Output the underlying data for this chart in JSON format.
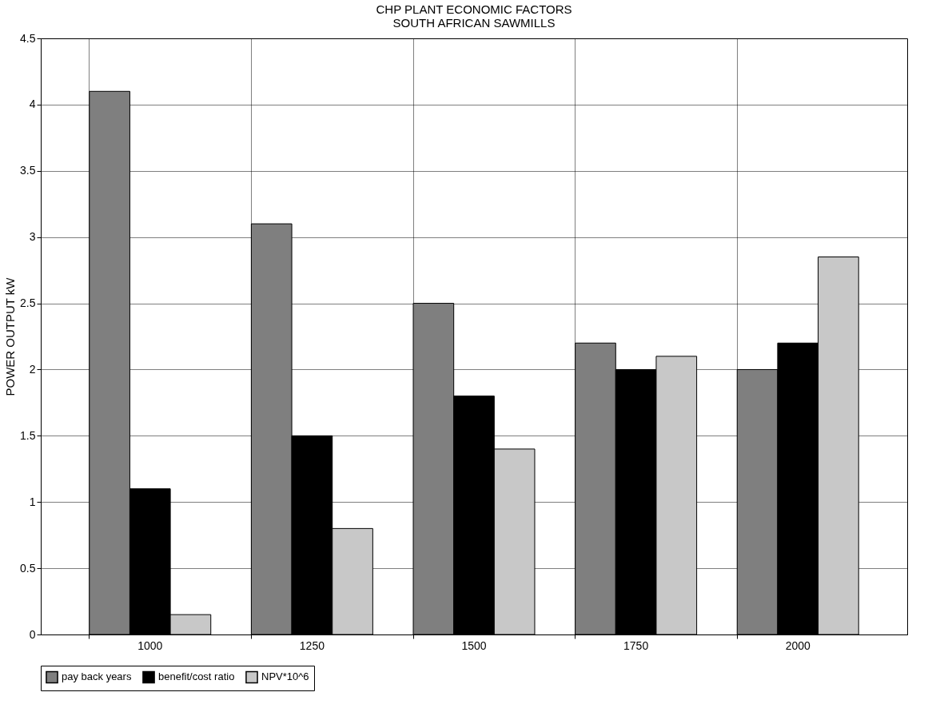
{
  "chart_data": {
    "type": "bar",
    "title": "CHP PLANT ECONOMIC FACTORS\nSOUTH AFRICAN SAWMILLS",
    "ylabel": "POWER OUTPUT kW",
    "categories": [
      "1000",
      "1250",
      "1500",
      "1750",
      "2000"
    ],
    "series": [
      {
        "name": "pay back years",
        "color": "#7f7f7f",
        "values": [
          4.1,
          3.1,
          2.5,
          2.2,
          2.0
        ]
      },
      {
        "name": "benefit/cost ratio",
        "color": "#000000",
        "values": [
          1.1,
          1.5,
          1.8,
          2.0,
          2.2
        ]
      },
      {
        "name": "NPV*10^6",
        "color": "#c8c8c8",
        "values": [
          0.15,
          0.8,
          1.4,
          2.1,
          2.85
        ]
      }
    ],
    "ylim": [
      0,
      4.5
    ],
    "yticks": [
      0,
      0.5,
      1,
      1.5,
      2,
      2.5,
      3,
      3.5,
      4,
      4.5
    ],
    "grid": true,
    "legend": "bottom"
  }
}
